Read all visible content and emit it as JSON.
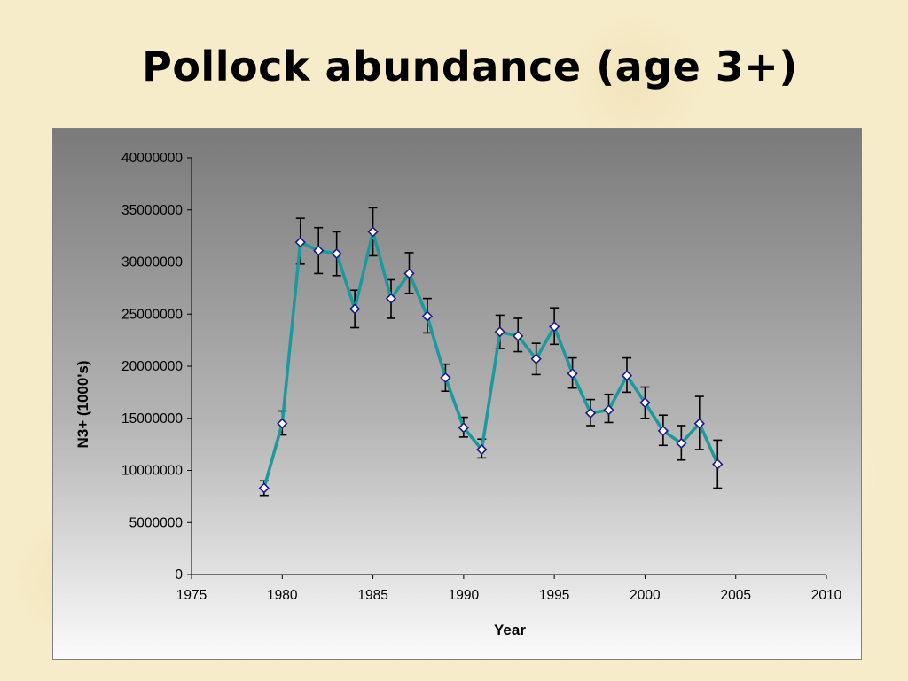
{
  "slide": {
    "title": "Pollock abundance (age 3+)"
  },
  "chart_data": {
    "type": "line",
    "xlabel": "Year",
    "ylabel": "N3+ (1000's)",
    "xlim": [
      1975,
      2010
    ],
    "ylim": [
      0,
      40000000
    ],
    "x_ticks": [
      "1975",
      "1980",
      "1985",
      "1990",
      "1995",
      "2000",
      "2005",
      "2010"
    ],
    "y_ticks": [
      "0",
      "5000000",
      "10000000",
      "15000000",
      "20000000",
      "25000000",
      "30000000",
      "35000000",
      "40000000"
    ],
    "grid": false,
    "legend": "none",
    "series": [
      {
        "line_color": "#1a9a9a",
        "marker_color": "#1a1a8c",
        "x": [
          1979,
          1980,
          1981,
          1982,
          1983,
          1984,
          1985,
          1986,
          1987,
          1988,
          1989,
          1990,
          1991,
          1992,
          1993,
          1994,
          1995,
          1996,
          1997,
          1998,
          1999,
          2000,
          2001,
          2002,
          2003,
          2004
        ],
        "y": [
          8300000,
          14500000,
          31900000,
          31100000,
          30800000,
          25500000,
          32900000,
          26500000,
          28900000,
          24800000,
          18900000,
          14100000,
          12000000,
          23300000,
          22900000,
          20700000,
          23800000,
          19300000,
          15500000,
          15800000,
          19100000,
          16500000,
          13800000,
          12600000,
          14500000,
          10600000
        ],
        "err_low": [
          7600000,
          13400000,
          29800000,
          28900000,
          28700000,
          23700000,
          30600000,
          24600000,
          27000000,
          23200000,
          17600000,
          13200000,
          11200000,
          21700000,
          21400000,
          19200000,
          22100000,
          17900000,
          14300000,
          14600000,
          17500000,
          15000000,
          12400000,
          11000000,
          12000000,
          8300000
        ],
        "err_high": [
          9000000,
          15700000,
          34200000,
          33300000,
          32900000,
          27300000,
          35200000,
          28300000,
          30900000,
          26500000,
          20200000,
          15100000,
          13000000,
          24900000,
          24600000,
          22200000,
          25600000,
          20800000,
          16800000,
          17300000,
          20800000,
          18000000,
          15300000,
          14300000,
          17100000,
          12900000
        ]
      }
    ]
  }
}
